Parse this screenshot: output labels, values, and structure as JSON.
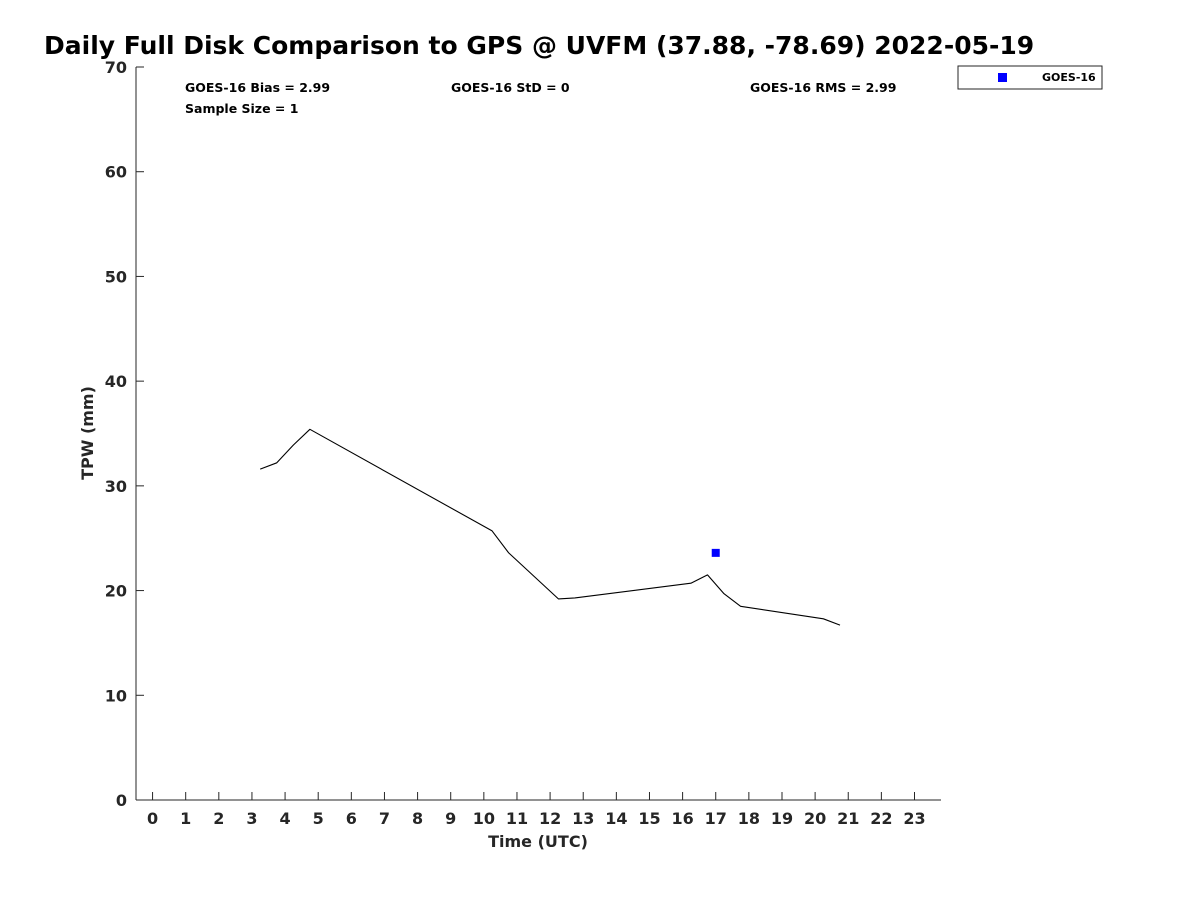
{
  "chart_data": {
    "type": "line",
    "title": "Daily Full Disk Comparison to GPS @ UVFM (37.88, -78.69) 2022-05-19",
    "xlabel": "Time (UTC)",
    "ylabel": "TPW (mm)",
    "xlim": [
      -0.5,
      23.8
    ],
    "ylim": [
      0,
      70
    ],
    "xticks": [
      0,
      1,
      2,
      3,
      4,
      5,
      6,
      7,
      8,
      9,
      10,
      11,
      12,
      13,
      14,
      15,
      16,
      17,
      18,
      19,
      20,
      21,
      22,
      23
    ],
    "yticks": [
      0,
      10,
      20,
      30,
      40,
      50,
      60,
      70
    ],
    "grid": false,
    "legend_position": "outside-top-right",
    "annotations": [
      "GOES-16 Bias = 2.99",
      "GOES-16 StD = 0",
      "GOES-16 RMS = 2.99",
      "Sample Size = 1"
    ],
    "series": [
      {
        "kind": "line",
        "color": "#000000",
        "x": [
          3.25,
          3.75,
          4.25,
          4.75,
          10.25,
          10.75,
          12.25,
          12.75,
          16.25,
          16.75,
          17.25,
          17.75,
          20.25,
          20.75
        ],
        "y": [
          31.6,
          32.2,
          33.9,
          35.4,
          25.7,
          23.6,
          19.2,
          19.3,
          20.7,
          21.5,
          19.7,
          18.5,
          17.3,
          16.7
        ]
      },
      {
        "name": "GOES-16",
        "kind": "marker",
        "marker": "square",
        "color": "#0000ff",
        "x": [
          17.0
        ],
        "y": [
          23.6
        ]
      }
    ]
  }
}
